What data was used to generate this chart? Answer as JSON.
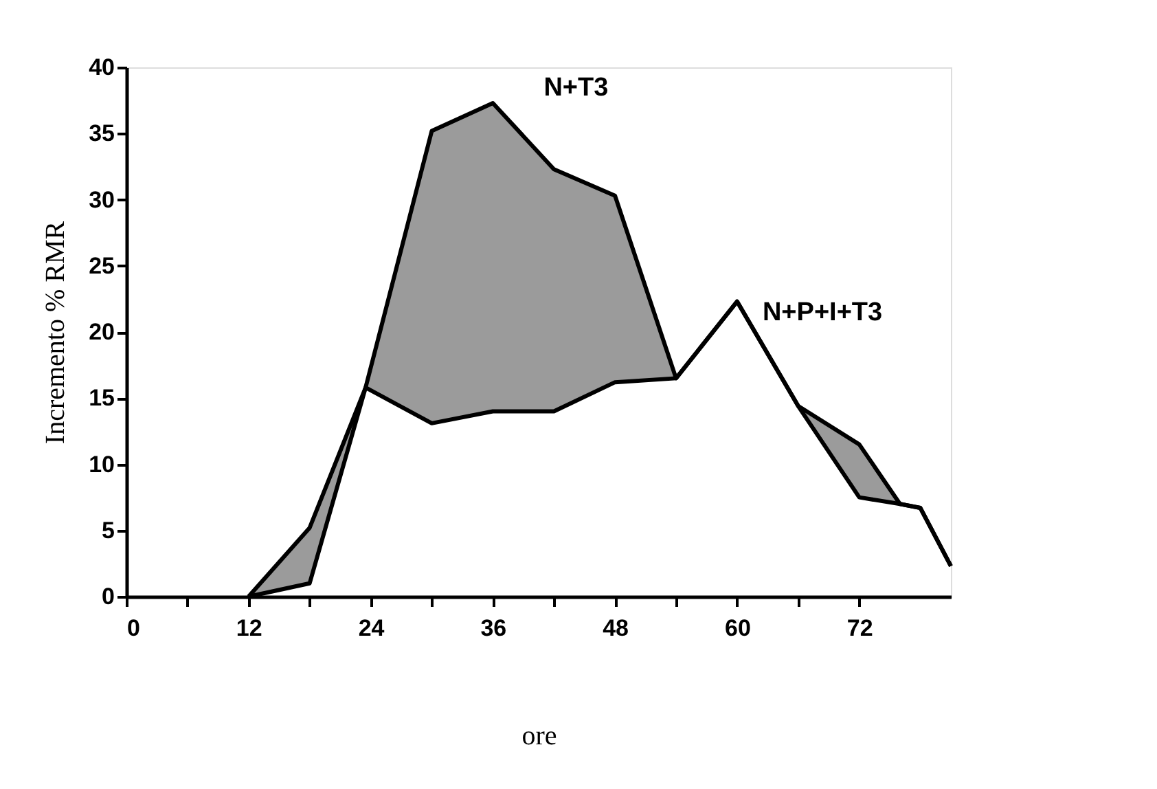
{
  "chart_data": {
    "type": "line",
    "xlabel": "ore",
    "ylabel": "Incremento % RMR",
    "x": [
      12,
      18,
      23.5,
      30,
      36,
      42,
      48,
      54,
      60,
      66,
      72,
      76,
      78,
      81
    ],
    "series": [
      {
        "name": "N+T3",
        "color": "#000000",
        "values": [
          0,
          5.2,
          15.8,
          35.2,
          37.3,
          32.3,
          30.3,
          16.5,
          22.3,
          14.4,
          11.5,
          7,
          6.7,
          2.3
        ]
      },
      {
        "name": "N+P+I+T3",
        "color": "#000000",
        "values": [
          0,
          1,
          15.8,
          13.1,
          14,
          14,
          16.2,
          16.5,
          22.3,
          14.4,
          7.5,
          7,
          6.7,
          2.3
        ]
      }
    ],
    "xlim": [
      0,
      81
    ],
    "xticks": [
      0,
      {
        "value": 6,
        "label": null
      },
      12,
      {
        "value": 18,
        "label": null
      },
      24,
      {
        "value": 30,
        "label": null
      },
      36,
      {
        "value": 42,
        "label": null
      },
      48,
      {
        "value": 54,
        "label": null
      },
      60,
      {
        "value": 66,
        "label": null
      },
      72
    ],
    "ylim": [
      0,
      40
    ],
    "yticks": [
      0,
      5,
      10,
      15,
      20,
      25,
      30,
      35,
      40
    ],
    "grid": false,
    "legend": false,
    "marker": "none",
    "line_style": "solid"
  }
}
